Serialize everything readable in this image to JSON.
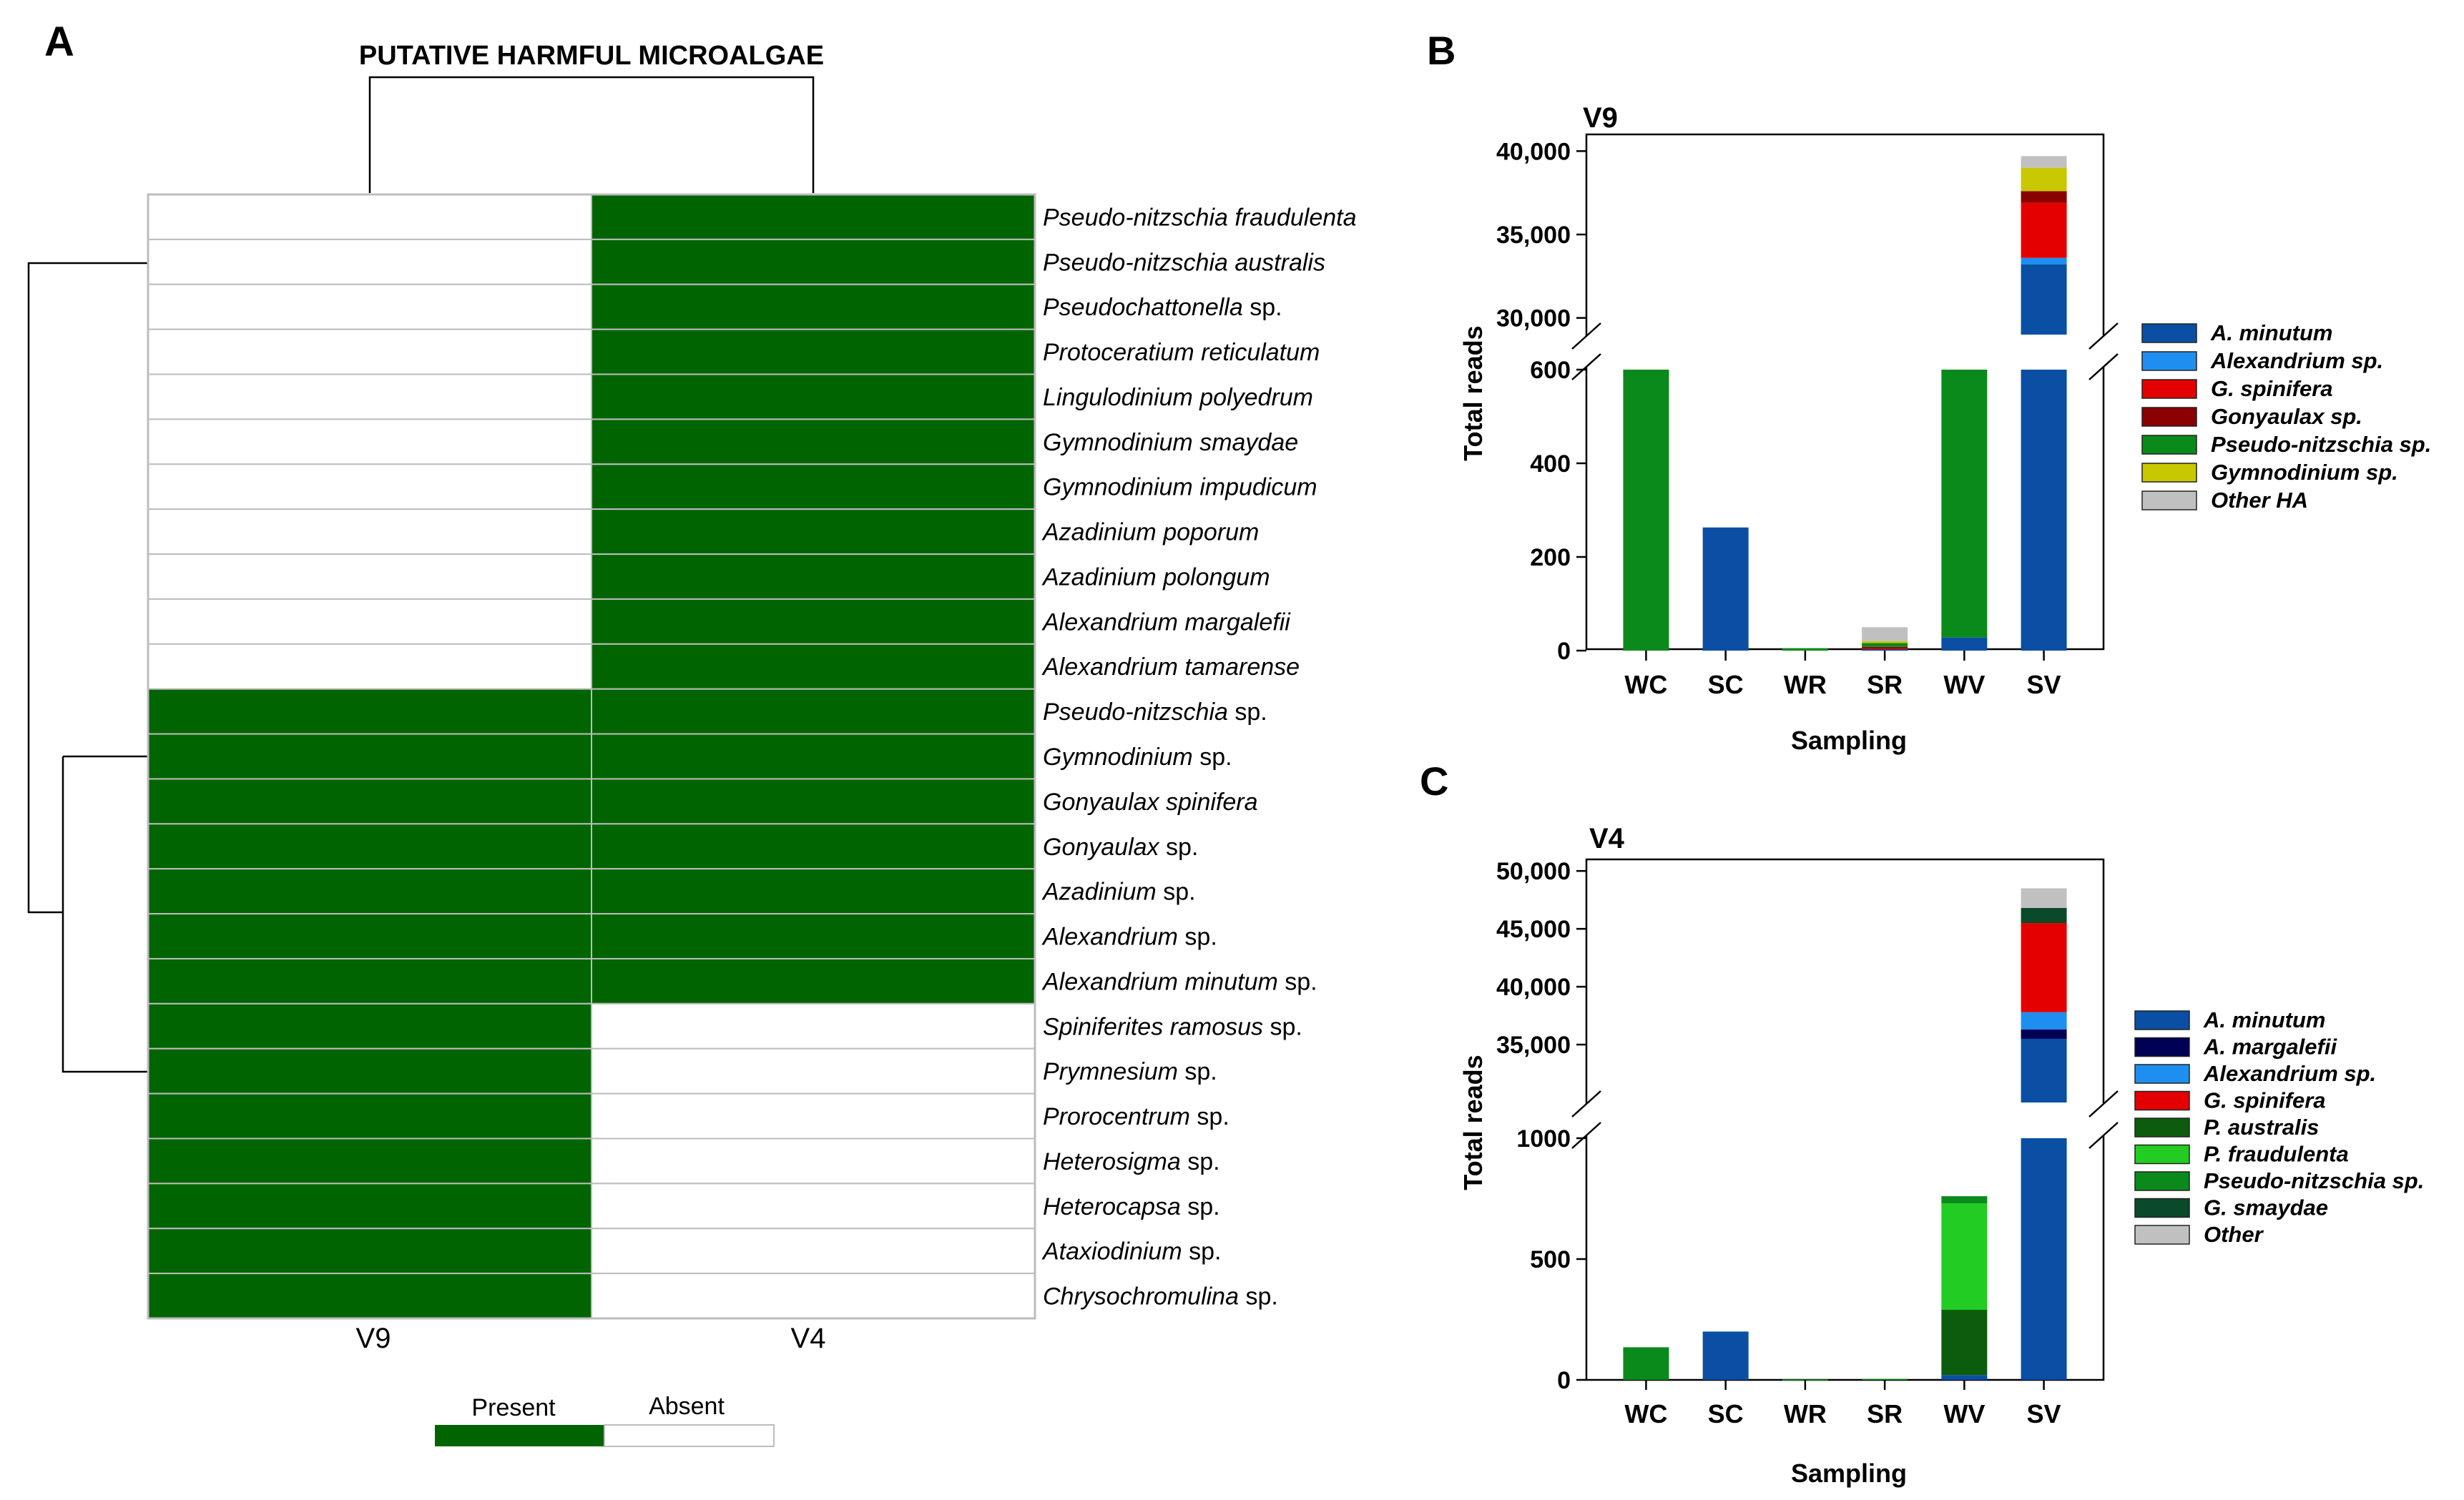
{
  "panel_a": {
    "letter": "A",
    "title": "PUTATIVE HARMFUL MICROALGAE",
    "columns": [
      "V9",
      "V4"
    ],
    "rows": [
      {
        "name": "Pseudo-nitzschia fraudulenta",
        "suffix": "",
        "v9": 0,
        "v4": 1
      },
      {
        "name": "Pseudo-nitzschia australis",
        "suffix": "",
        "v9": 0,
        "v4": 1
      },
      {
        "name": "Pseudochattonella",
        "suffix": " sp.",
        "v9": 0,
        "v4": 1
      },
      {
        "name": "Protoceratium reticulatum",
        "suffix": "",
        "v9": 0,
        "v4": 1
      },
      {
        "name": "Lingulodinium polyedrum",
        "suffix": "",
        "v9": 0,
        "v4": 1
      },
      {
        "name": "Gymnodinium smaydae",
        "suffix": "",
        "v9": 0,
        "v4": 1
      },
      {
        "name": "Gymnodinium impudicum",
        "suffix": "",
        "v9": 0,
        "v4": 1
      },
      {
        "name": "Azadinium poporum",
        "suffix": "",
        "v9": 0,
        "v4": 1
      },
      {
        "name": "Azadinium polongum",
        "suffix": "",
        "v9": 0,
        "v4": 1
      },
      {
        "name": "Alexandrium margalefii",
        "suffix": "",
        "v9": 0,
        "v4": 1
      },
      {
        "name": "Alexandrium tamarense",
        "suffix": "",
        "v9": 0,
        "v4": 1
      },
      {
        "name": "Pseudo-nitzschia",
        "suffix": " sp.",
        "v9": 1,
        "v4": 1
      },
      {
        "name": "Gymnodinium",
        "suffix": " sp.",
        "v9": 1,
        "v4": 1
      },
      {
        "name": "Gonyaulax spinifera",
        "suffix": "",
        "v9": 1,
        "v4": 1
      },
      {
        "name": "Gonyaulax",
        "suffix": " sp.",
        "v9": 1,
        "v4": 1
      },
      {
        "name": "Azadinium",
        "suffix": " sp.",
        "v9": 1,
        "v4": 1
      },
      {
        "name": "Alexandrium",
        "suffix": " sp.",
        "v9": 1,
        "v4": 1
      },
      {
        "name": "Alexandrium minutum",
        "suffix": " sp.",
        "v9": 1,
        "v4": 1
      },
      {
        "name": "Spiniferites ramosus",
        "suffix": " sp.",
        "v9": 1,
        "v4": 0
      },
      {
        "name": "Prymnesium",
        "suffix": " sp.",
        "v9": 1,
        "v4": 0
      },
      {
        "name": "Prorocentrum",
        "suffix": " sp.",
        "v9": 1,
        "v4": 0
      },
      {
        "name": "Heterosigma",
        "suffix": " sp.",
        "v9": 1,
        "v4": 0
      },
      {
        "name": "Heterocapsa",
        "suffix": " sp.",
        "v9": 1,
        "v4": 0
      },
      {
        "name": "Ataxiodinium",
        "suffix": " sp.",
        "v9": 1,
        "v4": 0
      },
      {
        "name": "Chrysochromulina",
        "suffix": " sp.",
        "v9": 1,
        "v4": 0
      }
    ],
    "legend": {
      "present": "Present",
      "absent": "Absent"
    },
    "colors": {
      "present": "#006400",
      "absent": "#ffffff"
    }
  },
  "chart_data": [
    {
      "panel": "B",
      "type": "bar",
      "stacked": true,
      "title": "V9",
      "xlabel": "Sampling",
      "ylabel": "Total reads",
      "categories": [
        "WC",
        "SC",
        "WR",
        "SR",
        "WV",
        "SV"
      ],
      "axis_break": {
        "lower_ylim": [
          0,
          600
        ],
        "upper_ylim": [
          29000,
          41000
        ]
      },
      "lower_ticks": [
        "0",
        "200",
        "400",
        "600"
      ],
      "upper_ticks": [
        "30,000",
        "35,000",
        "40,000"
      ],
      "series": [
        {
          "name": "A. minutum",
          "color": "#0a4fa3",
          "values": [
            0,
            263,
            0,
            3,
            28,
            33200
          ]
        },
        {
          "name": "Alexandrium sp.",
          "color": "#1e8ff0",
          "values": [
            0,
            0,
            0,
            0,
            0,
            400
          ]
        },
        {
          "name": "G. spinifera",
          "color": "#e50000",
          "values": [
            0,
            0,
            0,
            2,
            0,
            3300
          ]
        },
        {
          "name": "Gonyaulax sp.",
          "color": "#8b0000",
          "values": [
            0,
            0,
            0,
            3,
            0,
            700
          ]
        },
        {
          "name": "Pseudo-nitzschia sp.",
          "color": "#0a8a1a",
          "values": [
            600,
            0,
            5,
            8,
            572,
            0
          ]
        },
        {
          "name": "Gymnodinium sp.",
          "color": "#c8c800",
          "values": [
            0,
            0,
            0,
            4,
            0,
            1400
          ]
        },
        {
          "name": "Other HA",
          "color": "#c0c0c0",
          "values": [
            0,
            0,
            0,
            30,
            0,
            700
          ]
        }
      ]
    },
    {
      "panel": "C",
      "type": "bar",
      "stacked": true,
      "title": "V4",
      "xlabel": "Sampling",
      "ylabel": "Total reads",
      "categories": [
        "WC",
        "SC",
        "WR",
        "SR",
        "WV",
        "SV"
      ],
      "axis_break": {
        "lower_ylim": [
          0,
          1000
        ],
        "upper_ylim": [
          30000,
          51000
        ]
      },
      "lower_ticks": [
        "0",
        "500",
        "1000"
      ],
      "upper_ticks": [
        "35,000",
        "40,000",
        "45,000",
        "50,000"
      ],
      "series": [
        {
          "name": "A. minutum",
          "color": "#0a4fa3",
          "values": [
            0,
            200,
            0,
            0,
            20,
            35500
          ]
        },
        {
          "name": "A. margalefii",
          "color": "#000055",
          "values": [
            0,
            0,
            0,
            0,
            0,
            800
          ]
        },
        {
          "name": "Alexandrium sp.",
          "color": "#1e8ff0",
          "values": [
            0,
            0,
            0,
            0,
            0,
            1500
          ]
        },
        {
          "name": "G. spinifera",
          "color": "#e50000",
          "values": [
            0,
            0,
            0,
            0,
            0,
            7700
          ]
        },
        {
          "name": "P. australis",
          "color": "#0d5c0d",
          "values": [
            0,
            0,
            0,
            0,
            270,
            0
          ]
        },
        {
          "name": "P. fraudulenta",
          "color": "#22cc22",
          "values": [
            0,
            0,
            0,
            0,
            440,
            0
          ]
        },
        {
          "name": "Pseudo-nitzschia sp.",
          "color": "#0a8a1a",
          "values": [
            135,
            0,
            2,
            4,
            30,
            0
          ]
        },
        {
          "name": "G. smaydae",
          "color": "#0a4a2a",
          "values": [
            0,
            0,
            0,
            0,
            0,
            1300
          ]
        },
        {
          "name": "Other",
          "color": "#c0c0c0",
          "values": [
            0,
            0,
            0,
            0,
            0,
            1700
          ]
        }
      ]
    }
  ]
}
